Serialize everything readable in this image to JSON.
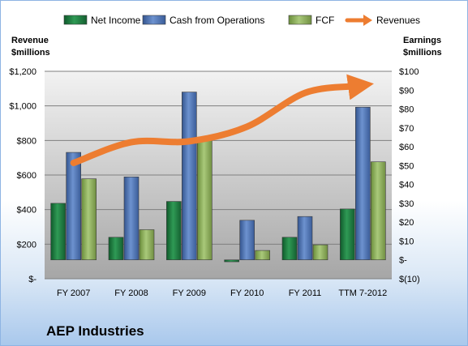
{
  "chart_data": {
    "type": "bar",
    "company": "AEP Industries",
    "categories": [
      "FY 2007",
      "FY 2008",
      "FY 2009",
      "FY 2010",
      "FY 2011",
      "TTM 7-2012"
    ],
    "left_axis_title": [
      "Revenue",
      "$millions"
    ],
    "right_axis_title": [
      "Earnings",
      "$millions"
    ],
    "left_ticks": [
      "$1,200",
      "$1,000",
      "$800",
      "$600",
      "$400",
      "$200",
      "$-"
    ],
    "right_ticks": [
      "$100",
      "$90",
      "$80",
      "$70",
      "$60",
      "$50",
      "$40",
      "$30",
      "$20",
      "$10",
      "$-",
      "$(10)"
    ],
    "ylim_left": [
      0,
      1200
    ],
    "ylim_right": [
      -10,
      100
    ],
    "grid": true,
    "legend_position": "top",
    "series": [
      {
        "name": "Net Income",
        "axis": "right",
        "color": "#1e7a3f",
        "values": [
          30,
          12,
          31,
          -1,
          12,
          27
        ]
      },
      {
        "name": "Cash from Operations",
        "axis": "right",
        "color": "#4f76b5",
        "values": [
          57,
          44,
          89,
          21,
          23,
          81
        ]
      },
      {
        "name": "FCF",
        "axis": "right",
        "color": "#8ab05a",
        "values": [
          43,
          16,
          64,
          5,
          8,
          52
        ]
      },
      {
        "name": "Revenues",
        "axis": "left",
        "type": "line",
        "color": "#ed7d31",
        "values": [
          670,
          790,
          795,
          880,
          1075,
          1120
        ]
      }
    ]
  }
}
